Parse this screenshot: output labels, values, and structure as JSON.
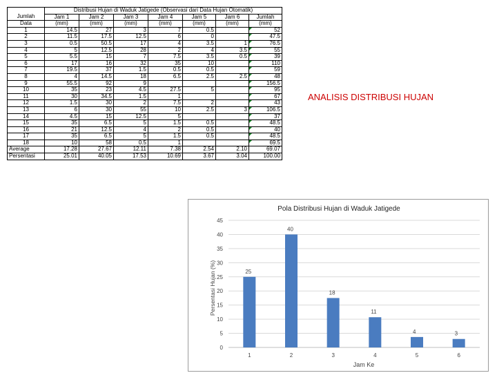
{
  "slide": {
    "title": "ANALISIS DISTRIBUSI HUJAN"
  },
  "table": {
    "title": "Distribusi Hujan di Waduk Jatigede (Observasi dari Data Hujan Otomatik)",
    "headers": [
      {
        "top": "Jumlah",
        "bottom": "Data"
      },
      {
        "top": "Jam 1",
        "bottom": "(mm)"
      },
      {
        "top": "Jam 2",
        "bottom": "(mm)"
      },
      {
        "top": "Jam 3",
        "bottom": "(mm)"
      },
      {
        "top": "Jam 4",
        "bottom": "(mm)"
      },
      {
        "top": "Jam 5",
        "bottom": "(mm)"
      },
      {
        "top": "Jam 6",
        "bottom": "(mm)"
      },
      {
        "top": "Jumlah",
        "bottom": "(mm)"
      }
    ],
    "rows": [
      [
        "1",
        "14.5",
        "27",
        "3",
        "7",
        "0.5",
        "",
        "52"
      ],
      [
        "2",
        "11.5",
        "17.5",
        "12.5",
        "6",
        "0",
        "",
        "47.5"
      ],
      [
        "3",
        "0.5",
        "50.5",
        "17",
        "4",
        "3.5",
        "1",
        "76.5"
      ],
      [
        "4",
        "5",
        "12.5",
        "28",
        "2",
        "4",
        "3.5",
        "55"
      ],
      [
        "5",
        "5.5",
        "15",
        "7",
        "7.5",
        "3.5",
        "0.5",
        "39"
      ],
      [
        "6",
        "17",
        "16",
        "32",
        "35",
        "10",
        "",
        "110"
      ],
      [
        "7",
        "19.5",
        "37",
        "1.5",
        "0.5",
        "0.5",
        "",
        "59"
      ],
      [
        "8",
        "4",
        "14.5",
        "18",
        "6.5",
        "2.5",
        "2.5",
        "48"
      ],
      [
        "9",
        "55.5",
        "92",
        "9",
        "",
        "",
        "",
        "156.5"
      ],
      [
        "10",
        "35",
        "23",
        "4.5",
        "27.5",
        "5",
        "",
        "95"
      ],
      [
        "11",
        "30",
        "34.5",
        "1.5",
        "1",
        "",
        "",
        "67"
      ],
      [
        "12",
        "1.5",
        "30",
        "2",
        "7.5",
        "2",
        "",
        "43"
      ],
      [
        "13",
        "6",
        "30",
        "55",
        "10",
        "2.5",
        "3",
        "106.5"
      ],
      [
        "14",
        "4.5",
        "15",
        "12.5",
        "5",
        "",
        "",
        "37"
      ],
      [
        "15",
        "35",
        "6.5",
        "5",
        "1.5",
        "0.5",
        "",
        "48.5"
      ],
      [
        "16",
        "21",
        "12.5",
        "4",
        "2",
        "0.5",
        "",
        "40"
      ],
      [
        "17",
        "35",
        "6.5",
        "5",
        "1.5",
        "0.5",
        "",
        "48.5"
      ],
      [
        "18",
        "10",
        "58",
        "0.5",
        "1",
        "",
        "",
        "69.5"
      ]
    ],
    "average": [
      "Average",
      "17.28",
      "27.67",
      "12.11",
      "7.38",
      "2.54",
      "2.10",
      "69.07"
    ],
    "percent": [
      "Persentasi",
      "25.01",
      "40.05",
      "17.53",
      "10.69",
      "3.67",
      "3.04",
      "100.00"
    ]
  },
  "chart_data": {
    "type": "bar",
    "title": "Pola Distribusi Hujan di Waduk Jatigede",
    "xlabel": "Jam Ke",
    "ylabel": "Persentasi Hujan (%)",
    "categories": [
      "1",
      "2",
      "3",
      "4",
      "5",
      "6"
    ],
    "values": [
      25,
      40,
      17.5,
      10.7,
      3.7,
      3.0
    ],
    "data_labels": [
      "25",
      "40",
      "18",
      "11",
      "4",
      "3"
    ],
    "ylim": [
      0,
      45
    ],
    "yticks": [
      "0",
      "5",
      "10",
      "15",
      "20",
      "25",
      "30",
      "35",
      "40",
      "45"
    ],
    "grid": true,
    "bar_color": "#4a7cc0"
  }
}
